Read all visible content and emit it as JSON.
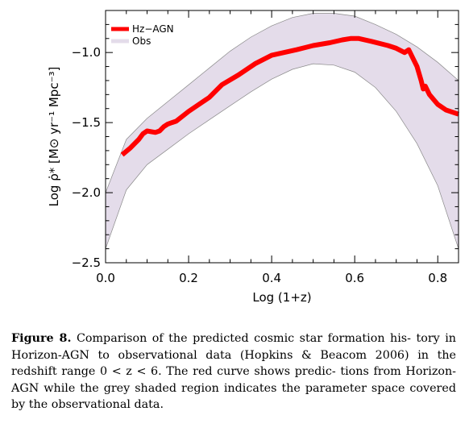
{
  "figure": {
    "label": "Figure 8.",
    "caption_lines": [
      "Comparison of the predicted cosmic star formation his-",
      "tory in Horizon-AGN to observational data (Hopkins & Beacom",
      "2006) in the redshift range 0 < z < 6. The red curve shows predic-",
      "tions from Horizon-AGN while the grey shaded region indicates",
      "the parameter space covered by the observational data."
    ]
  },
  "chart_data": {
    "type": "line",
    "xlabel": "Log (1+z)",
    "ylabel": "Log ρ̇* [M⊙ yr⁻¹ Mpc⁻³]",
    "xlim": [
      0.0,
      0.85
    ],
    "ylim": [
      -2.5,
      -0.7
    ],
    "x_ticks": [
      0.0,
      0.2,
      0.4,
      0.6,
      0.8
    ],
    "x_tick_labels": [
      "0.0",
      "0.2",
      "0.4",
      "0.6",
      "0.8"
    ],
    "y_ticks": [
      -2.5,
      -2.0,
      -1.5,
      -1.0
    ],
    "y_tick_labels": [
      "−2.5",
      "−2.0",
      "−1.5",
      "−1.0"
    ],
    "legend": {
      "placement": "top-left",
      "entries": [
        "Hz−AGN",
        "Obs"
      ]
    },
    "colors": {
      "model": "#ff0000",
      "obs_fill": "#e4dcea",
      "obs_edge": "#8a8a8a"
    },
    "series": [
      {
        "name": "Hz−AGN",
        "x": [
          0.04,
          0.06,
          0.08,
          0.09,
          0.1,
          0.12,
          0.13,
          0.14,
          0.15,
          0.16,
          0.17,
          0.2,
          0.25,
          0.28,
          0.32,
          0.36,
          0.4,
          0.46,
          0.5,
          0.54,
          0.57,
          0.59,
          0.61,
          0.64,
          0.68,
          0.7,
          0.72,
          0.73,
          0.74,
          0.75,
          0.76,
          0.765,
          0.77,
          0.78,
          0.8,
          0.82,
          0.85
        ],
        "y": [
          -1.73,
          -1.68,
          -1.62,
          -1.58,
          -1.56,
          -1.57,
          -1.56,
          -1.53,
          -1.51,
          -1.5,
          -1.49,
          -1.42,
          -1.32,
          -1.23,
          -1.16,
          -1.08,
          -1.02,
          -0.98,
          -0.95,
          -0.93,
          -0.91,
          -0.9,
          -0.9,
          -0.92,
          -0.95,
          -0.97,
          -1.0,
          -0.98,
          -1.04,
          -1.1,
          -1.2,
          -1.26,
          -1.24,
          -1.3,
          -1.37,
          -1.41,
          -1.44
        ]
      }
    ],
    "obs_band": {
      "name": "Obs",
      "x": [
        0.0,
        0.05,
        0.1,
        0.15,
        0.2,
        0.25,
        0.3,
        0.35,
        0.4,
        0.45,
        0.5,
        0.55,
        0.6,
        0.65,
        0.7,
        0.75,
        0.8,
        0.85
      ],
      "upper": [
        -2.0,
        -1.62,
        -1.47,
        -1.35,
        -1.23,
        -1.11,
        -0.99,
        -0.89,
        -0.81,
        -0.75,
        -0.72,
        -0.72,
        -0.74,
        -0.8,
        -0.87,
        -0.96,
        -1.07,
        -1.2
      ],
      "lower": [
        -2.4,
        -1.98,
        -1.8,
        -1.69,
        -1.58,
        -1.48,
        -1.38,
        -1.28,
        -1.19,
        -1.12,
        -1.08,
        -1.09,
        -1.14,
        -1.25,
        -1.42,
        -1.65,
        -1.95,
        -2.4
      ]
    }
  }
}
